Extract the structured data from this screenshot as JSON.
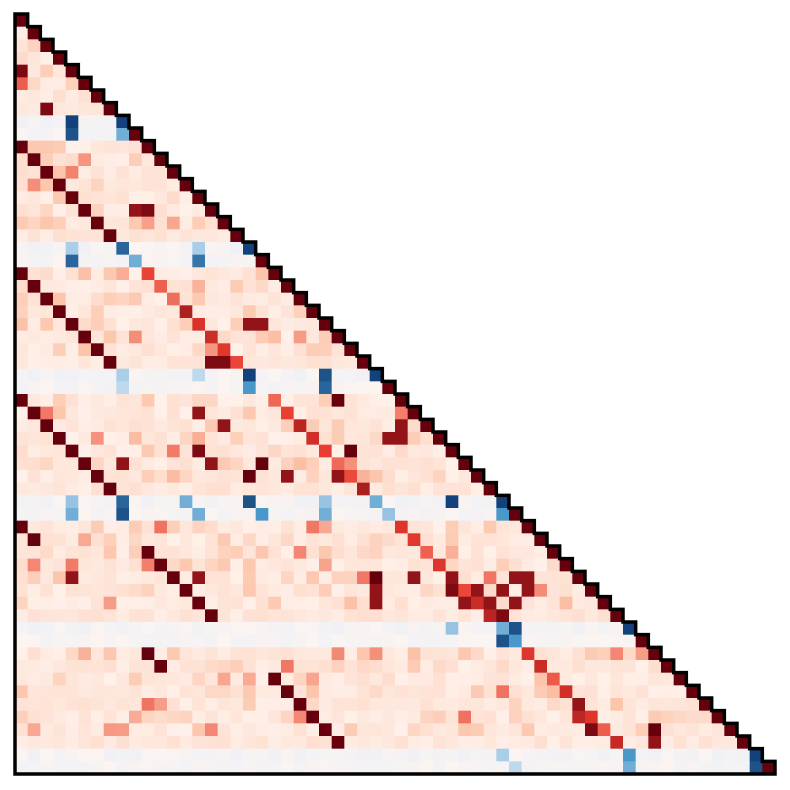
{
  "chart_data": {
    "type": "heatmap",
    "title": "",
    "xlabel": "",
    "ylabel": "",
    "shape": "lower-triangular",
    "n": 60,
    "grid": false,
    "legend": "none",
    "colormap": "diverging",
    "value_range": [
      -1,
      1
    ],
    "colors": {
      "negative_strong": "#08306b",
      "negative_mid": "#4a98c9",
      "negative_light": "#e4eef9",
      "neutral": "#fff5f0",
      "positive_light": "#fcc5ab",
      "positive_mid": "#e83a2e",
      "positive_strong": "#67000d",
      "outline": "#000000"
    },
    "block_size": 10,
    "negative_rows": [
      8,
      18,
      28,
      38,
      48,
      58
    ],
    "negative_cells": [
      [
        8,
        4,
        -0.95
      ],
      [
        9,
        4,
        -0.9
      ],
      [
        8,
        8,
        -0.85
      ],
      [
        9,
        8,
        -0.6
      ],
      [
        18,
        4,
        -0.45
      ],
      [
        19,
        4,
        -0.85
      ],
      [
        18,
        8,
        -0.85
      ],
      [
        19,
        9,
        -0.6
      ],
      [
        18,
        14,
        -0.45
      ],
      [
        19,
        14,
        -0.8
      ],
      [
        18,
        18,
        -0.9
      ],
      [
        19,
        19,
        -0.6
      ],
      [
        28,
        8,
        -0.45
      ],
      [
        29,
        8,
        -0.4
      ],
      [
        28,
        14,
        -0.4
      ],
      [
        28,
        18,
        -0.95
      ],
      [
        29,
        18,
        -0.7
      ],
      [
        28,
        24,
        -0.9
      ],
      [
        29,
        24,
        -0.85
      ],
      [
        28,
        28,
        -0.7
      ],
      [
        38,
        4,
        -0.5
      ],
      [
        39,
        4,
        -0.6
      ],
      [
        38,
        8,
        -0.85
      ],
      [
        39,
        8,
        -0.9
      ],
      [
        38,
        13,
        -0.6
      ],
      [
        39,
        14,
        -0.6
      ],
      [
        38,
        18,
        -0.9
      ],
      [
        39,
        19,
        -0.7
      ],
      [
        38,
        24,
        -0.5
      ],
      [
        39,
        24,
        -0.6
      ],
      [
        38,
        28,
        -0.6
      ],
      [
        39,
        29,
        -0.5
      ],
      [
        38,
        34,
        -0.95
      ],
      [
        39,
        38,
        -0.7
      ],
      [
        48,
        34,
        -0.5
      ],
      [
        48,
        38,
        -0.6
      ],
      [
        48,
        38,
        -0.6
      ],
      [
        49,
        38,
        -0.9
      ],
      [
        48,
        39,
        -0.9
      ],
      [
        49,
        39,
        -0.7
      ],
      [
        48,
        48,
        -0.95
      ],
      [
        49,
        49,
        -0.7
      ],
      [
        58,
        38,
        -0.45
      ],
      [
        59,
        39,
        -0.4
      ],
      [
        58,
        48,
        -0.7
      ],
      [
        59,
        48,
        -0.6
      ],
      [
        58,
        58,
        -0.95
      ],
      [
        59,
        58,
        -0.9
      ],
      [
        59,
        59,
        -0.5
      ]
    ],
    "strong_positive_cells": [
      [
        4,
        0,
        0.95
      ],
      [
        5,
        0,
        0.6
      ],
      [
        7,
        2,
        0.95
      ],
      [
        10,
        0,
        1
      ],
      [
        11,
        1,
        1
      ],
      [
        12,
        2,
        1
      ],
      [
        13,
        3,
        1
      ],
      [
        14,
        4,
        1
      ],
      [
        15,
        5,
        1
      ],
      [
        15,
        9,
        0.9
      ],
      [
        15,
        10,
        0.95
      ],
      [
        16,
        6,
        1
      ],
      [
        17,
        7,
        1
      ],
      [
        20,
        0,
        1
      ],
      [
        21,
        1,
        1
      ],
      [
        22,
        2,
        1
      ],
      [
        23,
        3,
        1
      ],
      [
        24,
        4,
        1
      ],
      [
        25,
        5,
        1
      ],
      [
        24,
        18,
        0.9
      ],
      [
        24,
        19,
        0.9
      ],
      [
        26,
        6,
        1
      ],
      [
        27,
        7,
        1
      ],
      [
        27,
        15,
        0.95
      ],
      [
        27,
        16,
        0.95
      ],
      [
        30,
        0,
        1
      ],
      [
        31,
        1,
        1
      ],
      [
        32,
        2,
        1
      ],
      [
        33,
        3,
        1
      ],
      [
        34,
        4,
        1
      ],
      [
        35,
        5,
        1
      ],
      [
        34,
        14,
        0.95
      ],
      [
        35,
        15,
        0.9
      ],
      [
        36,
        6,
        1
      ],
      [
        37,
        7,
        1
      ],
      [
        36,
        21,
        0.9
      ],
      [
        36,
        25,
        0.9
      ],
      [
        40,
        0,
        1
      ],
      [
        41,
        1,
        1
      ],
      [
        42,
        10,
        1
      ],
      [
        43,
        11,
        1
      ],
      [
        44,
        12,
        1
      ],
      [
        45,
        13,
        1
      ],
      [
        46,
        14,
        1
      ],
      [
        47,
        15,
        1
      ],
      [
        44,
        34,
        0.9
      ],
      [
        45,
        34,
        0.95
      ],
      [
        46,
        35,
        0.9
      ],
      [
        50,
        10,
        1
      ],
      [
        51,
        11,
        1
      ],
      [
        52,
        20,
        1
      ],
      [
        53,
        21,
        1
      ],
      [
        54,
        22,
        1
      ],
      [
        55,
        23,
        1
      ],
      [
        56,
        24,
        1
      ],
      [
        57,
        25,
        1
      ],
      [
        54,
        44,
        0.9
      ],
      [
        55,
        44,
        0.8
      ],
      [
        56,
        45,
        0.95
      ],
      [
        56,
        50,
        1
      ],
      [
        57,
        50,
        0.9
      ],
      [
        20,
        24,
        0.9
      ],
      [
        22,
        32,
        0.9
      ],
      [
        30,
        25,
        1
      ],
      [
        32,
        30,
        0.9
      ],
      [
        33,
        29,
        0.9
      ],
      [
        33,
        30,
        0.9
      ],
      [
        35,
        19,
        1
      ],
      [
        36,
        18,
        1
      ],
      [
        35,
        8,
        0.9
      ],
      [
        34,
        26,
        1
      ],
      [
        34,
        35,
        0.9
      ],
      [
        31,
        14,
        0.9
      ],
      [
        32,
        16,
        0.9
      ],
      [
        44,
        4,
        0.9
      ],
      [
        44,
        14,
        0.9
      ],
      [
        44,
        28,
        1
      ],
      [
        45,
        28,
        0.9
      ],
      [
        46,
        28,
        0.9
      ],
      [
        44,
        31,
        0.9
      ],
      [
        45,
        36,
        0.9
      ],
      [
        46,
        37,
        0.9
      ],
      [
        47,
        38,
        0.95
      ],
      [
        44,
        39,
        0.9
      ],
      [
        45,
        38,
        0.9
      ],
      [
        46,
        39,
        0.9
      ],
      [
        44,
        40,
        0.9
      ],
      [
        45,
        40,
        0.9
      ]
    ]
  }
}
